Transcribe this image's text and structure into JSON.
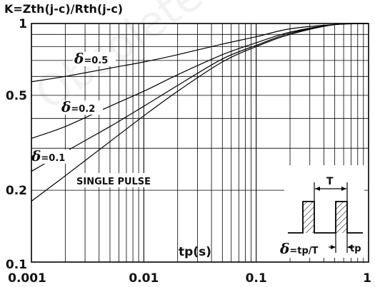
{
  "chart_data": {
    "type": "line",
    "title": "K=Zth(j-c)/Rth(j-c)",
    "xlabel": "tp(s)",
    "ylabel": "",
    "xscale": "log",
    "yscale": "log",
    "xlim": [
      0.001,
      1
    ],
    "ylim": [
      0.1,
      1
    ],
    "grid": true,
    "x_ticks": [
      "0.001",
      "0.01",
      "0.1",
      "1"
    ],
    "y_ticks": [
      "0.1",
      "0.2",
      "0.5",
      "1"
    ],
    "series": [
      {
        "name": "δ=0.5",
        "label_prefix": "δ",
        "label_suffix": "=0.5",
        "x": [
          0.001,
          0.002,
          0.005,
          0.01,
          0.02,
          0.05,
          0.1,
          0.2,
          0.5,
          1
        ],
        "y": [
          0.57,
          0.6,
          0.65,
          0.69,
          0.74,
          0.82,
          0.88,
          0.95,
          0.99,
          1.0
        ]
      },
      {
        "name": "δ=0.2",
        "label_prefix": "δ",
        "label_suffix": "=0.2",
        "x": [
          0.001,
          0.002,
          0.005,
          0.01,
          0.02,
          0.05,
          0.1,
          0.2,
          0.5,
          1
        ],
        "y": [
          0.33,
          0.37,
          0.45,
          0.52,
          0.61,
          0.74,
          0.83,
          0.92,
          0.99,
          1.0
        ]
      },
      {
        "name": "δ=0.1",
        "label_prefix": "δ",
        "label_suffix": "=0.1",
        "x": [
          0.001,
          0.002,
          0.005,
          0.01,
          0.02,
          0.05,
          0.1,
          0.2,
          0.5,
          1
        ],
        "y": [
          0.24,
          0.29,
          0.37,
          0.45,
          0.55,
          0.71,
          0.81,
          0.91,
          0.99,
          1.0
        ]
      },
      {
        "name": "SINGLE PULSE",
        "label_prefix": "",
        "label_suffix": "SINGLE PULSE",
        "x": [
          0.001,
          0.002,
          0.005,
          0.01,
          0.02,
          0.05,
          0.1,
          0.2,
          0.5,
          1
        ],
        "y": [
          0.18,
          0.23,
          0.32,
          0.41,
          0.52,
          0.69,
          0.8,
          0.9,
          0.99,
          1.0
        ]
      }
    ],
    "inset": {
      "period_label": "T",
      "pulse_label": "tp",
      "formula_prefix": "δ",
      "formula_suffix": "=tp/T"
    },
    "watermark": "Obsolete"
  }
}
